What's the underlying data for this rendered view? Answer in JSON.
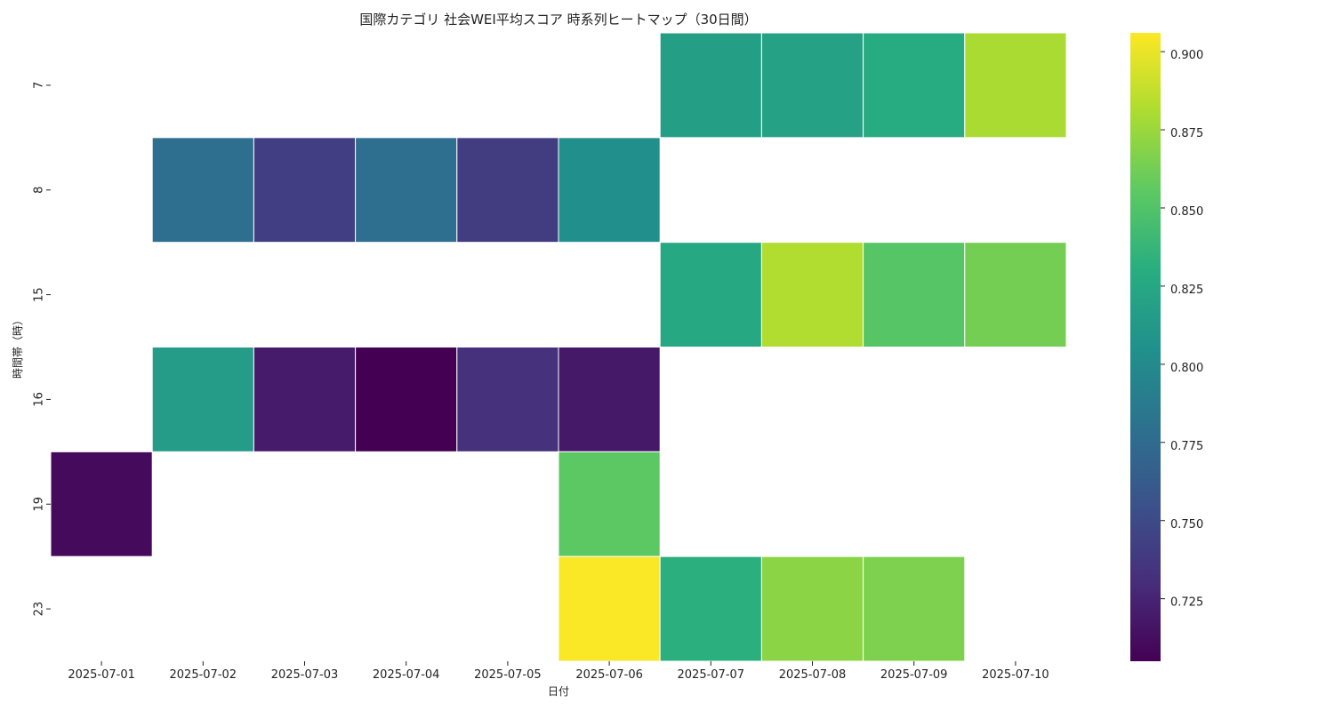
{
  "chart_data": {
    "type": "heatmap",
    "title": "国際カテゴリ 社会WEI平均スコア 時系列ヒートマップ（30日間）",
    "xlabel": "日付",
    "ylabel": "時間帯（時）",
    "x": [
      "2025-07-01",
      "2025-07-02",
      "2025-07-03",
      "2025-07-04",
      "2025-07-05",
      "2025-07-06",
      "2025-07-07",
      "2025-07-08",
      "2025-07-09",
      "2025-07-10"
    ],
    "y": [
      "7",
      "8",
      "15",
      "16",
      "19",
      "23"
    ],
    "values": [
      [
        null,
        null,
        null,
        null,
        null,
        null,
        0.818,
        0.82,
        0.828,
        0.88
      ],
      [
        null,
        0.777,
        0.742,
        0.777,
        0.74,
        0.805,
        null,
        null,
        null,
        null
      ],
      [
        null,
        null,
        null,
        null,
        null,
        null,
        0.825,
        0.882,
        0.852,
        0.863
      ],
      [
        null,
        0.815,
        0.72,
        0.705,
        0.733,
        0.718,
        null,
        null,
        null,
        null
      ],
      [
        0.71,
        null,
        null,
        null,
        null,
        0.855,
        null,
        null,
        null,
        null
      ],
      [
        null,
        null,
        null,
        null,
        null,
        0.905,
        0.832,
        0.87,
        0.866,
        null
      ]
    ],
    "colorscale": "viridis",
    "colorbar": {
      "min": 0.705,
      "max": 0.906,
      "ticks": [
        0.725,
        0.75,
        0.775,
        0.8,
        0.825,
        0.85,
        0.875,
        0.9
      ],
      "tick_labels": [
        "0.725",
        "0.750",
        "0.775",
        "0.800",
        "0.825",
        "0.850",
        "0.875",
        "0.900"
      ]
    },
    "grid": false,
    "legend": "colorbar-right"
  }
}
